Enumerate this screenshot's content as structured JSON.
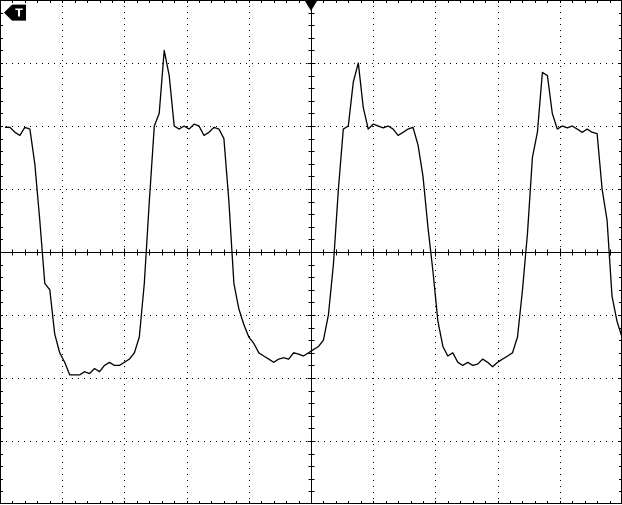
{
  "chart_data": {
    "type": "line",
    "title": "",
    "xlabel": "",
    "ylabel": "",
    "xlim": [
      -5,
      5
    ],
    "ylim": [
      -4,
      4
    ],
    "grid": true,
    "x_divisions": 10,
    "y_divisions": 8,
    "minor_ticks_per_division": 5,
    "grid_style": "dotted",
    "trace_color": "#000000",
    "background_color": "#ffffff",
    "trigger_marker_top": "down-triangle",
    "trigger_level_marker": {
      "icon": "trigger-level-arrow-icon",
      "label": "T",
      "y": 3.8
    },
    "series": [
      {
        "x": [
          -4.92,
          -4.84,
          -4.76,
          -4.68,
          -4.6,
          -4.52,
          -4.44,
          -4.36,
          -4.28,
          -4.2,
          -4.12,
          -4.04,
          -3.96,
          -3.88,
          -3.8,
          -3.72,
          -3.64,
          -3.56,
          -3.48,
          -3.4,
          -3.32,
          -3.24,
          -3.16,
          -3.08,
          -3.0,
          -2.92,
          -2.84,
          -2.76,
          -2.68,
          -2.6,
          -2.52,
          -2.44,
          -2.36,
          -2.28,
          -2.2,
          -2.12,
          -2.04,
          -1.96,
          -1.88,
          -1.8,
          -1.72,
          -1.64,
          -1.56,
          -1.48,
          -1.4,
          -1.32,
          -1.24,
          -1.16,
          -1.08,
          -1.0,
          -0.92,
          -0.84,
          -0.76,
          -0.68,
          -0.6,
          -0.52,
          -0.44,
          -0.36,
          -0.28,
          -0.2,
          -0.12,
          -0.04,
          0.04,
          0.12,
          0.2,
          0.28,
          0.36,
          0.44,
          0.52,
          0.6,
          0.68,
          0.76,
          0.84,
          0.92,
          1.0,
          1.08,
          1.16,
          1.24,
          1.32,
          1.4,
          1.48,
          1.56,
          1.64,
          1.72,
          1.8,
          1.88,
          1.96,
          2.04,
          2.12,
          2.2,
          2.28,
          2.36,
          2.44,
          2.52,
          2.6,
          2.68,
          2.76,
          2.84,
          2.92,
          3.0,
          3.08,
          3.16,
          3.24,
          3.32,
          3.4,
          3.48,
          3.56,
          3.64,
          3.72,
          3.8,
          3.88,
          3.96,
          4.04,
          4.12,
          4.2,
          4.28,
          4.36,
          4.44,
          4.52,
          4.6,
          4.68,
          4.76,
          4.84,
          4.92,
          5.0
        ],
        "y": [
          1.98,
          1.98,
          1.9,
          1.85,
          1.98,
          1.95,
          1.4,
          0.5,
          -0.5,
          -0.6,
          -1.3,
          -1.6,
          -1.75,
          -1.95,
          -1.95,
          -1.95,
          -1.9,
          -1.93,
          -1.85,
          -1.9,
          -1.8,
          -1.75,
          -1.8,
          -1.8,
          -1.75,
          -1.7,
          -1.6,
          -1.35,
          -0.5,
          0.8,
          2.0,
          2.2,
          3.2,
          2.8,
          2.0,
          1.95,
          2.0,
          1.95,
          2.03,
          2.0,
          1.85,
          1.9,
          1.98,
          1.95,
          1.8,
          0.8,
          -0.5,
          -0.9,
          -1.15,
          -1.35,
          -1.45,
          -1.6,
          -1.65,
          -1.7,
          -1.75,
          -1.7,
          -1.68,
          -1.7,
          -1.6,
          -1.62,
          -1.65,
          -1.6,
          -1.55,
          -1.5,
          -1.4,
          -1.0,
          -0.2,
          1.0,
          1.95,
          2.0,
          2.7,
          3.0,
          2.3,
          1.95,
          2.03,
          2.0,
          1.97,
          2.0,
          1.95,
          1.85,
          1.9,
          1.95,
          1.98,
          1.7,
          1.2,
          0.4,
          -0.3,
          -1.1,
          -1.5,
          -1.65,
          -1.6,
          -1.75,
          -1.8,
          -1.75,
          -1.8,
          -1.78,
          -1.7,
          -1.75,
          -1.82,
          -1.75,
          -1.7,
          -1.65,
          -1.6,
          -1.35,
          -0.6,
          0.3,
          1.5,
          1.9,
          2.85,
          2.8,
          2.2,
          1.95,
          2.0,
          1.97,
          2.0,
          1.95,
          1.9,
          1.95,
          1.9,
          1.88,
          1.0,
          0.5,
          -0.7,
          -1.1,
          -1.35
        ]
      }
    ]
  }
}
